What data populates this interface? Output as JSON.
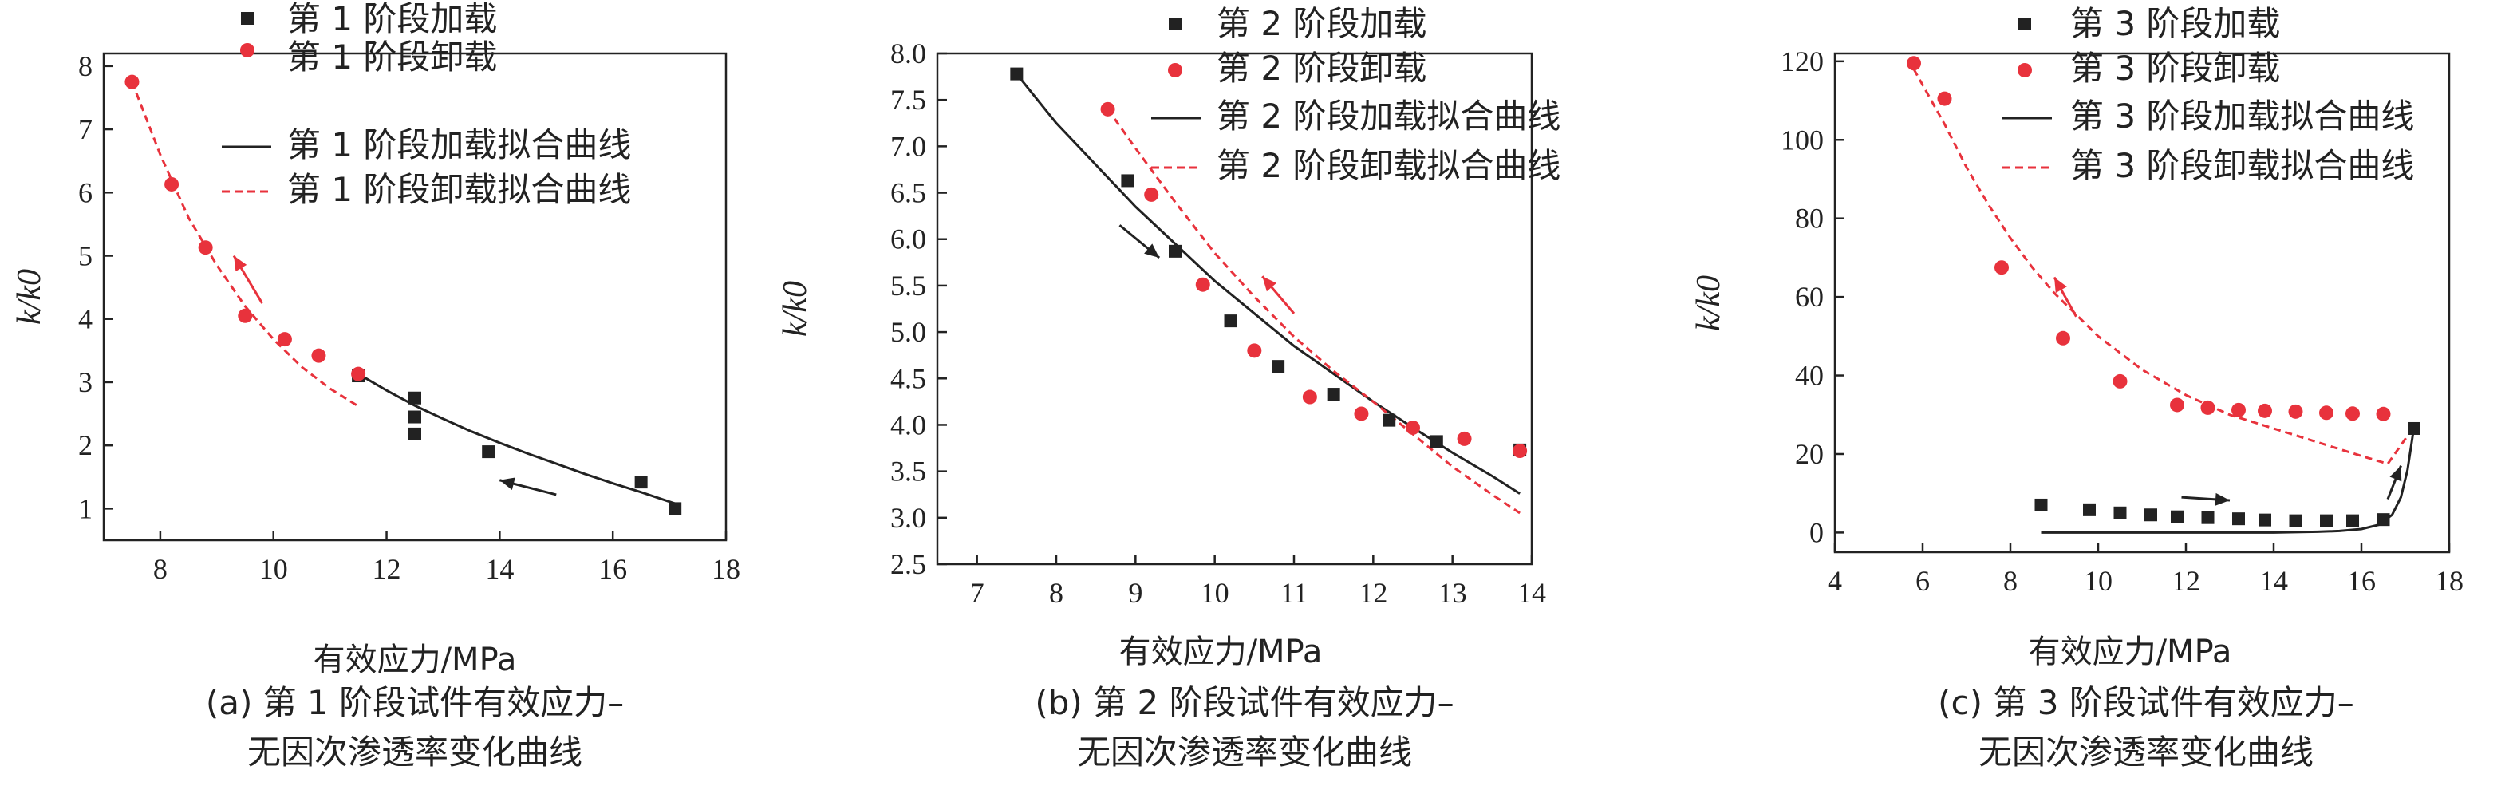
{
  "chart_data": [
    {
      "type": "scatter",
      "xlabel": "有效应力/MPa",
      "ylabel": "k/k0",
      "xlim": [
        7,
        18
      ],
      "ylim": [
        0.5,
        8.2
      ],
      "xticks": [
        8,
        10,
        12,
        14,
        16,
        18
      ],
      "yticks": [
        1,
        2,
        3,
        4,
        5,
        6,
        7,
        8
      ],
      "caption": [
        "(a) 第 1 阶段试件有效应力–",
        "无因次渗透率变化曲线"
      ],
      "series": [
        {
          "name": "第 1 阶段加载",
          "kind": "scatter-square",
          "color": "#222222",
          "x": [
            11.5,
            12.5,
            12.5,
            12.5,
            13.8,
            16.5,
            17.1
          ],
          "y": [
            3.1,
            2.75,
            2.45,
            2.18,
            1.9,
            1.42,
            1.0
          ]
        },
        {
          "name": "第 1 阶段卸载",
          "kind": "scatter-circle",
          "color": "#e8323c",
          "x": [
            7.5,
            8.2,
            8.8,
            9.5,
            10.2,
            10.8,
            11.5
          ],
          "y": [
            7.75,
            6.13,
            5.13,
            4.05,
            3.68,
            3.42,
            3.13
          ]
        },
        {
          "name": "第 1 阶段加载拟合曲线",
          "kind": "line-solid",
          "color": "#222222",
          "x": [
            11.5,
            12.0,
            12.5,
            13.0,
            13.5,
            14.0,
            14.5,
            15.0,
            15.5,
            16.0,
            16.5,
            17.1
          ],
          "y": [
            3.13,
            2.87,
            2.63,
            2.42,
            2.22,
            2.04,
            1.87,
            1.71,
            1.55,
            1.4,
            1.26,
            1.08
          ]
        },
        {
          "name": "第 1 阶段卸载拟合曲线",
          "kind": "line-dashed",
          "color": "#e8323c",
          "x": [
            7.5,
            8.0,
            8.5,
            9.0,
            9.5,
            10.0,
            10.5,
            11.0,
            11.5
          ],
          "y": [
            7.75,
            6.6,
            5.6,
            4.85,
            4.2,
            3.68,
            3.24,
            2.9,
            2.62
          ]
        }
      ],
      "arrows": [
        {
          "color": "#222222",
          "from": [
            15.0,
            1.22
          ],
          "to": [
            14.0,
            1.45
          ]
        },
        {
          "color": "#e8323c",
          "from": [
            9.8,
            4.25
          ],
          "to": [
            9.3,
            5.0
          ]
        }
      ]
    },
    {
      "type": "scatter",
      "xlabel": "有效应力/MPa",
      "ylabel": "k/k0",
      "xlim": [
        6.5,
        14
      ],
      "ylim": [
        2.5,
        8.0
      ],
      "xticks": [
        7,
        8,
        9,
        10,
        11,
        12,
        13,
        14
      ],
      "yticks": [
        2.5,
        3.0,
        3.5,
        4.0,
        4.5,
        5.0,
        5.5,
        6.0,
        6.5,
        7.0,
        7.5,
        8.0
      ],
      "ytick_decimals": 1,
      "caption": [
        "(b) 第 2 阶段试件有效应力–",
        "无因次渗透率变化曲线"
      ],
      "series": [
        {
          "name": "第 2 阶段加载",
          "kind": "scatter-square",
          "color": "#222222",
          "x": [
            7.5,
            8.9,
            9.5,
            10.2,
            10.8,
            11.5,
            12.2,
            12.8,
            13.85
          ],
          "y": [
            7.78,
            6.63,
            5.87,
            5.12,
            4.63,
            4.33,
            4.05,
            3.82,
            3.73
          ]
        },
        {
          "name": "第 2 阶段卸载",
          "kind": "scatter-circle",
          "color": "#e8323c",
          "x": [
            8.65,
            9.2,
            9.85,
            10.5,
            11.2,
            11.85,
            12.5,
            13.15,
            13.85
          ],
          "y": [
            7.4,
            6.48,
            5.51,
            4.8,
            4.3,
            4.12,
            3.97,
            3.85,
            3.72
          ]
        },
        {
          "name": "第 2 阶段加载拟合曲线",
          "kind": "line-solid",
          "color": "#222222",
          "x": [
            7.5,
            8.0,
            8.5,
            9.0,
            9.5,
            10.0,
            10.5,
            11.0,
            11.5,
            12.0,
            12.5,
            13.0,
            13.5,
            13.85
          ],
          "y": [
            7.78,
            7.25,
            6.8,
            6.35,
            5.95,
            5.55,
            5.2,
            4.85,
            4.55,
            4.25,
            3.97,
            3.7,
            3.45,
            3.26
          ]
        },
        {
          "name": "第 2 阶段卸载拟合曲线",
          "kind": "line-dashed",
          "color": "#e8323c",
          "x": [
            8.65,
            9.0,
            9.5,
            10.0,
            10.5,
            11.0,
            11.5,
            12.0,
            12.5,
            13.0,
            13.5,
            13.85
          ],
          "y": [
            7.4,
            6.98,
            6.4,
            5.85,
            5.38,
            4.95,
            4.58,
            4.25,
            3.9,
            3.55,
            3.25,
            3.05
          ]
        }
      ],
      "arrows": [
        {
          "color": "#222222",
          "from": [
            8.8,
            6.15
          ],
          "to": [
            9.3,
            5.8
          ]
        },
        {
          "color": "#e8323c",
          "from": [
            11.0,
            5.2
          ],
          "to": [
            10.6,
            5.6
          ]
        }
      ]
    },
    {
      "type": "scatter",
      "xlabel": "有效应力/MPa",
      "ylabel": "k/k0",
      "xlim": [
        4,
        18
      ],
      "ylim": [
        -5,
        122
      ],
      "xticks": [
        4,
        6,
        8,
        10,
        12,
        14,
        16,
        18
      ],
      "yticks": [
        0,
        20,
        40,
        60,
        80,
        100,
        120
      ],
      "caption": [
        "(c) 第 3 阶段试件有效应力–",
        "无因次渗透率变化曲线"
      ],
      "series": [
        {
          "name": "第 3 阶段加载",
          "kind": "scatter-square",
          "color": "#222222",
          "x": [
            8.7,
            9.8,
            10.5,
            11.2,
            11.8,
            12.5,
            13.2,
            13.8,
            14.5,
            15.2,
            15.8,
            16.5,
            17.2
          ],
          "y": [
            7.0,
            5.8,
            5.0,
            4.5,
            4.0,
            3.8,
            3.5,
            3.2,
            3.0,
            3.0,
            3.0,
            3.3,
            26.5
          ]
        },
        {
          "name": "第 3 阶段卸载",
          "kind": "scatter-circle",
          "color": "#e8323c",
          "x": [
            5.8,
            6.5,
            7.8,
            9.2,
            10.5,
            11.8,
            12.5,
            13.2,
            13.8,
            14.5,
            15.2,
            15.8,
            16.5
          ],
          "y": [
            119.5,
            110.5,
            67.5,
            49.5,
            38.5,
            32.5,
            31.8,
            31.2,
            31.0,
            30.8,
            30.5,
            30.3,
            30.2
          ]
        },
        {
          "name": "第 3 阶段加载拟合曲线",
          "kind": "line-solid",
          "color": "#222222",
          "x": [
            8.7,
            10.0,
            11.0,
            12.0,
            13.0,
            14.0,
            15.0,
            15.5,
            16.0,
            16.4,
            16.7,
            16.9,
            17.05,
            17.2
          ],
          "y": [
            0.0,
            0.0,
            0.0,
            0.0,
            0.0,
            0.0,
            0.2,
            0.4,
            0.9,
            2.0,
            4.5,
            9.0,
            16.0,
            27.0
          ]
        },
        {
          "name": "第 3 阶段卸载拟合曲线",
          "kind": "line-dashed",
          "color": "#e8323c",
          "x": [
            5.8,
            6.5,
            7.0,
            7.5,
            8.0,
            8.5,
            9.0,
            10.0,
            11.0,
            12.0,
            13.0,
            14.0,
            15.0,
            16.0,
            16.6,
            17.2
          ],
          "y": [
            118.0,
            104.0,
            93.0,
            83.5,
            75.0,
            67.5,
            61.0,
            50.0,
            41.5,
            35.0,
            30.0,
            26.5,
            23.0,
            19.5,
            17.5,
            27.0
          ]
        }
      ],
      "arrows": [
        {
          "color": "#222222",
          "from": [
            11.9,
            9.0
          ],
          "to": [
            13.0,
            8.2
          ]
        },
        {
          "color": "#222222",
          "from": [
            16.6,
            8.5
          ],
          "to": [
            16.9,
            17.0
          ]
        },
        {
          "color": "#e8323c",
          "from": [
            9.5,
            55.0
          ],
          "to": [
            9.0,
            65.0
          ]
        }
      ]
    }
  ]
}
